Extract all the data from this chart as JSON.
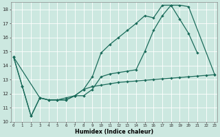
{
  "xlabel": "Humidex (Indice chaleur)",
  "background_color": "#cce8e0",
  "grid_color": "#ffffff",
  "line_color": "#1a6b5a",
  "xlim": [
    0,
    23
  ],
  "ylim": [
    10,
    18.5
  ],
  "xticks": [
    0,
    1,
    2,
    3,
    4,
    5,
    6,
    7,
    8,
    9,
    10,
    11,
    12,
    13,
    14,
    15,
    16,
    17,
    18,
    19,
    20,
    21,
    22,
    23
  ],
  "yticks": [
    10,
    11,
    12,
    13,
    14,
    15,
    16,
    17,
    18
  ],
  "line1_x": [
    0,
    1,
    2,
    3,
    4,
    5,
    6,
    7,
    8,
    9,
    10,
    11,
    12,
    13,
    14,
    15,
    16,
    17,
    18,
    19,
    20,
    21,
    22,
    23
  ],
  "line1_y": [
    14.6,
    12.5,
    10.4,
    11.7,
    11.55,
    11.55,
    11.55,
    11.85,
    12.3,
    12.5,
    12.6,
    12.7,
    12.8,
    12.85,
    12.9,
    12.95,
    13.0,
    13.05,
    13.1,
    13.15,
    13.2,
    13.25,
    13.3,
    13.35
  ],
  "line2_x": [
    0,
    1,
    2,
    3,
    4,
    5,
    6,
    7,
    8,
    9,
    10,
    11,
    12,
    13,
    14,
    15,
    16,
    17,
    18,
    19,
    20,
    21
  ],
  "line2_y": [
    14.6,
    12.5,
    10.4,
    11.7,
    11.55,
    11.55,
    11.7,
    11.85,
    12.3,
    13.2,
    14.9,
    15.5,
    16.0,
    16.5,
    17.0,
    17.55,
    17.4,
    18.3,
    18.3,
    17.3,
    16.3,
    14.9
  ],
  "line3_x": [
    0,
    3,
    4,
    5,
    6,
    7,
    8,
    9,
    10,
    11,
    12,
    13,
    14,
    15,
    16,
    17,
    18,
    19,
    20,
    23
  ],
  "line3_y": [
    14.6,
    11.7,
    11.55,
    11.55,
    11.55,
    11.85,
    11.85,
    12.3,
    13.2,
    13.4,
    13.5,
    13.6,
    13.7,
    15.0,
    16.5,
    17.55,
    18.3,
    18.3,
    18.2,
    13.35
  ]
}
